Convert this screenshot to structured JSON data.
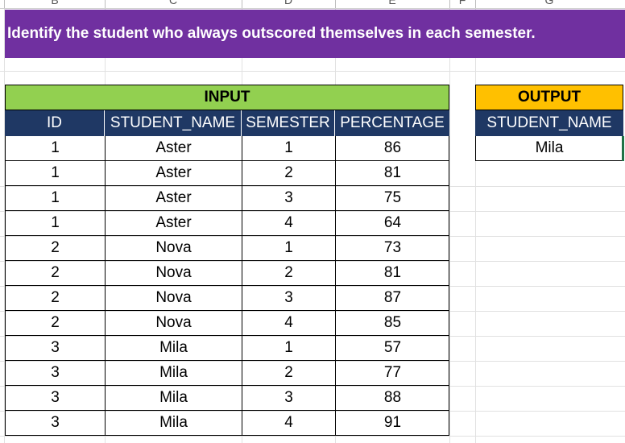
{
  "column_letters": [
    "B",
    "C",
    "D",
    "E",
    "F",
    "G"
  ],
  "banner": {
    "text": "Identify the student who always outscored themselves in each semester."
  },
  "input": {
    "title": "INPUT",
    "headers": [
      "ID",
      "STUDENT_NAME",
      "SEMESTER",
      "PERCENTAGE"
    ],
    "rows": [
      [
        "1",
        "Aster",
        "1",
        "86"
      ],
      [
        "1",
        "Aster",
        "2",
        "81"
      ],
      [
        "1",
        "Aster",
        "3",
        "75"
      ],
      [
        "1",
        "Aster",
        "4",
        "64"
      ],
      [
        "2",
        "Nova",
        "1",
        "73"
      ],
      [
        "2",
        "Nova",
        "2",
        "81"
      ],
      [
        "2",
        "Nova",
        "3",
        "87"
      ],
      [
        "2",
        "Nova",
        "4",
        "85"
      ],
      [
        "3",
        "Mila",
        "1",
        "57"
      ],
      [
        "3",
        "Mila",
        "2",
        "77"
      ],
      [
        "3",
        "Mila",
        "3",
        "88"
      ],
      [
        "3",
        "Mila",
        "4",
        "91"
      ]
    ]
  },
  "output": {
    "title": "OUTPUT",
    "header": "STUDENT_NAME",
    "value": "Mila"
  },
  "colors": {
    "banner": "#7030a0",
    "input_title": "#92d050",
    "output_title": "#ffc000",
    "header": "#1f3864",
    "selection": "#217346"
  }
}
